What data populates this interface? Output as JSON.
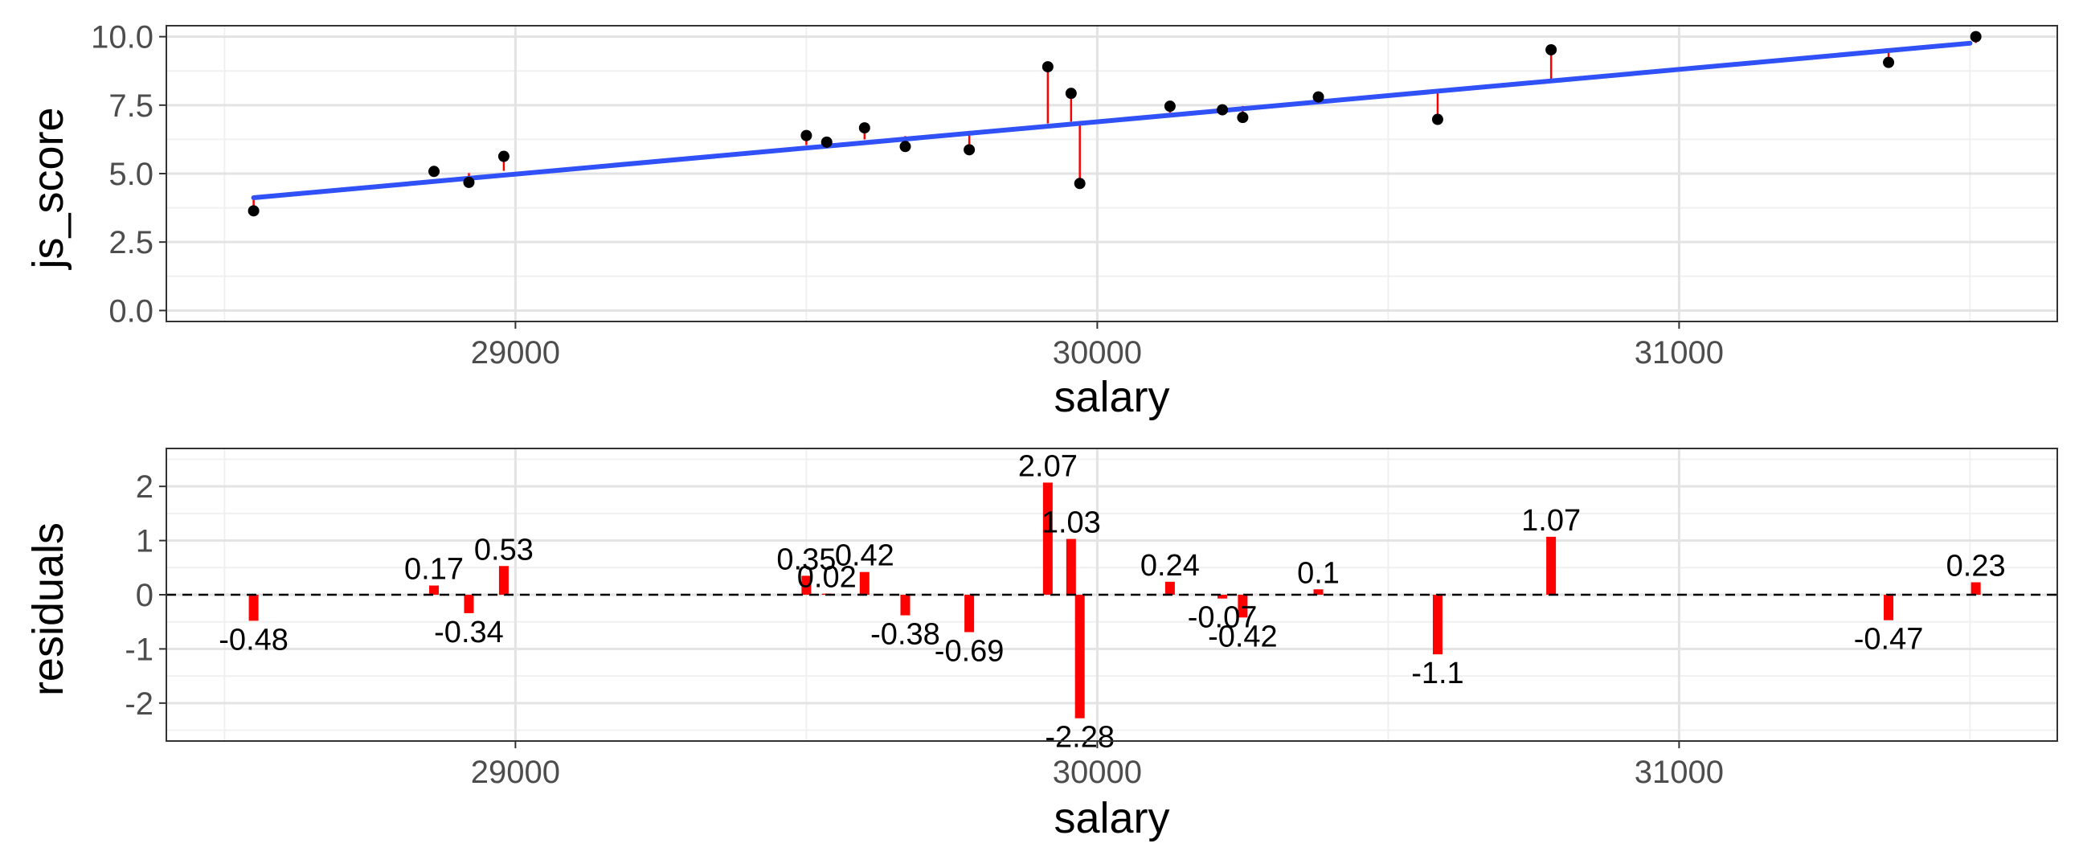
{
  "chart_data": [
    {
      "type": "scatter",
      "xlabel": "salary",
      "ylabel": "js_score",
      "xlim": [
        28400,
        31650
      ],
      "ylim": [
        -0.4,
        10.4
      ],
      "x_ticks": [
        29000,
        30000,
        31000
      ],
      "x_tick_labels": [
        "29000",
        "30000",
        "31000"
      ],
      "y_ticks": [
        0,
        2.5,
        5,
        7.5,
        10
      ],
      "y_tick_labels": [
        "0.0",
        "2.5",
        "5.0",
        "7.5",
        "10.0"
      ],
      "grid": true,
      "fit_line": {
        "color": "#3050f8",
        "x": [
          28550,
          31500
        ],
        "y": [
          4.12,
          9.76
        ]
      },
      "residual_segment_color": "#ff0000",
      "points": [
        {
          "x": 28550,
          "y": 3.64,
          "fit": 4.12
        },
        {
          "x": 28860,
          "y": 5.08,
          "fit": 4.91
        },
        {
          "x": 28920,
          "y": 4.68,
          "fit": 5.02
        },
        {
          "x": 28980,
          "y": 5.63,
          "fit": 5.1
        },
        {
          "x": 29500,
          "y": 6.39,
          "fit": 6.04
        },
        {
          "x": 29535,
          "y": 6.15,
          "fit": 6.13
        },
        {
          "x": 29600,
          "y": 6.67,
          "fit": 6.25
        },
        {
          "x": 29670,
          "y": 5.99,
          "fit": 6.37
        },
        {
          "x": 29780,
          "y": 5.87,
          "fit": 6.56
        },
        {
          "x": 29915,
          "y": 8.9,
          "fit": 6.83
        },
        {
          "x": 29955,
          "y": 7.93,
          "fit": 6.9
        },
        {
          "x": 29970,
          "y": 4.64,
          "fit": 6.92
        },
        {
          "x": 30125,
          "y": 7.46,
          "fit": 7.22
        },
        {
          "x": 30215,
          "y": 7.33,
          "fit": 7.4
        },
        {
          "x": 30250,
          "y": 7.05,
          "fit": 7.47
        },
        {
          "x": 30380,
          "y": 7.8,
          "fit": 7.7
        },
        {
          "x": 30585,
          "y": 6.98,
          "fit": 8.08
        },
        {
          "x": 30780,
          "y": 9.52,
          "fit": 8.45
        },
        {
          "x": 31360,
          "y": 9.06,
          "fit": 9.53
        },
        {
          "x": 31510,
          "y": 10.0,
          "fit": 9.77
        }
      ]
    },
    {
      "type": "bar",
      "xlabel": "salary",
      "ylabel": "residuals",
      "xlim": [
        28400,
        31650
      ],
      "ylim": [
        -2.7,
        2.7
      ],
      "x_ticks": [
        29000,
        30000,
        31000
      ],
      "x_tick_labels": [
        "29000",
        "30000",
        "31000"
      ],
      "y_ticks": [
        -2,
        -1,
        0,
        1,
        2
      ],
      "y_tick_labels": [
        "-2",
        "-1",
        "0",
        "1",
        "2"
      ],
      "grid": true,
      "bar_color": "#ff0000",
      "zero_line": "dashed",
      "bars": [
        {
          "x": 28550,
          "value": -0.48,
          "label": "-0.48"
        },
        {
          "x": 28860,
          "value": 0.17,
          "label": "0.17"
        },
        {
          "x": 28920,
          "value": -0.34,
          "label": "-0.34"
        },
        {
          "x": 28980,
          "value": 0.53,
          "label": "0.53"
        },
        {
          "x": 29500,
          "value": 0.35,
          "label": "0.35"
        },
        {
          "x": 29535,
          "value": 0.02,
          "label": "0.02"
        },
        {
          "x": 29600,
          "value": 0.42,
          "label": "0.42"
        },
        {
          "x": 29670,
          "value": -0.38,
          "label": "-0.38"
        },
        {
          "x": 29780,
          "value": -0.69,
          "label": "-0.69"
        },
        {
          "x": 29915,
          "value": 2.07,
          "label": "2.07"
        },
        {
          "x": 29955,
          "value": 1.03,
          "label": "1.03"
        },
        {
          "x": 29970,
          "value": -2.28,
          "label": "-2.28"
        },
        {
          "x": 30125,
          "value": 0.24,
          "label": "0.24"
        },
        {
          "x": 30215,
          "value": -0.07,
          "label": "-0.07"
        },
        {
          "x": 30250,
          "value": -0.42,
          "label": "-0.42"
        },
        {
          "x": 30380,
          "value": 0.1,
          "label": "0.1"
        },
        {
          "x": 30585,
          "value": -1.1,
          "label": "-1.1"
        },
        {
          "x": 30780,
          "value": 1.07,
          "label": "1.07"
        },
        {
          "x": 31360,
          "value": -0.47,
          "label": "-0.47"
        },
        {
          "x": 31510,
          "value": 0.23,
          "label": "0.23"
        }
      ]
    }
  ]
}
